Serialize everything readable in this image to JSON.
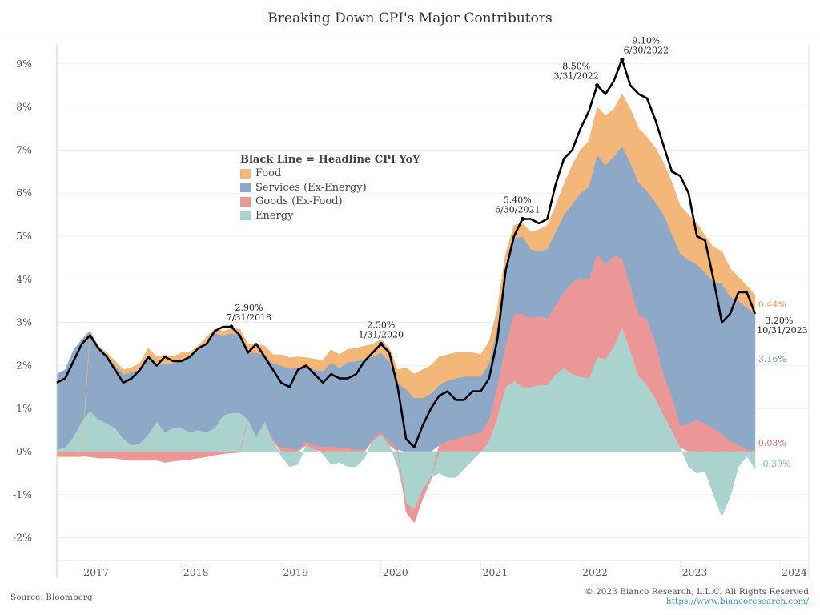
{
  "title": "Breaking Down CPI's Major Contributors",
  "source": "Source: Bloomberg",
  "copyright": "© 2023 Bianco Research, L.L.C. All Rights Reserved",
  "website": "https://www.biancoresearch.com/",
  "chart_data": {
    "type": "area",
    "stacked": true,
    "title": "Breaking Down CPI's Major Contributors",
    "xlabel": "",
    "ylabel": "",
    "ylim": [
      -2.5,
      9.5
    ],
    "yticks": [
      -2,
      -1,
      0,
      1,
      2,
      3,
      4,
      5,
      6,
      7,
      8,
      9
    ],
    "ytick_labels": [
      "-2%",
      "-1%",
      "0%",
      "1%",
      "2%",
      "3%",
      "4%",
      "5%",
      "6%",
      "7%",
      "8%",
      "9%"
    ],
    "xtick_labels": [
      "2017",
      "2018",
      "2019",
      "2020",
      "2021",
      "2022",
      "2023",
      "2024"
    ],
    "x_start": "2016-10",
    "x_end": "2023-10",
    "frequency": "monthly",
    "grid": true,
    "legend": {
      "placement": "upper-left-center",
      "title": "Black Line = Headline CPI YoY",
      "entries": [
        "Food",
        "Services (Ex-Energy)",
        "Goods (Ex-Food)",
        "Energy"
      ]
    },
    "colors": {
      "food": "#F3B77A",
      "services": "#8EA9C8",
      "goods": "#EB9697",
      "energy": "#ABD3CE",
      "headline": "#000000"
    },
    "headline": {
      "name": "Headline CPI YoY",
      "values": [
        1.6,
        1.7,
        2.1,
        2.5,
        2.7,
        2.4,
        2.2,
        1.9,
        1.6,
        1.7,
        1.9,
        2.2,
        2.0,
        2.2,
        2.1,
        2.1,
        2.2,
        2.4,
        2.5,
        2.8,
        2.9,
        2.9,
        2.7,
        2.3,
        2.5,
        2.2,
        1.9,
        1.6,
        1.5,
        1.9,
        2.0,
        1.8,
        1.6,
        1.8,
        1.7,
        1.7,
        1.8,
        2.1,
        2.3,
        2.5,
        2.3,
        1.5,
        0.3,
        0.1,
        0.6,
        1.0,
        1.3,
        1.4,
        1.2,
        1.2,
        1.4,
        1.4,
        1.7,
        2.6,
        4.2,
        5.0,
        5.4,
        5.4,
        5.3,
        5.4,
        6.2,
        6.8,
        7.0,
        7.5,
        7.9,
        8.5,
        8.3,
        8.6,
        9.1,
        8.5,
        8.3,
        8.2,
        7.7,
        7.1,
        6.5,
        6.4,
        6.0,
        5.0,
        4.9,
        4.0,
        3.0,
        3.2,
        3.7,
        3.7,
        3.2
      ]
    },
    "series": [
      {
        "name": "Energy",
        "key": "energy",
        "values": [
          0.05,
          0.1,
          0.35,
          0.7,
          0.95,
          0.75,
          0.65,
          0.55,
          0.3,
          0.15,
          0.2,
          0.4,
          0.7,
          0.45,
          0.55,
          0.55,
          0.45,
          0.5,
          0.45,
          0.55,
          0.85,
          0.9,
          0.9,
          0.75,
          0.35,
          0.7,
          0.25,
          -0.1,
          -0.35,
          -0.3,
          0.15,
          0.05,
          -0.05,
          -0.3,
          -0.25,
          -0.35,
          -0.35,
          -0.15,
          0.25,
          0.4,
          0.15,
          -0.35,
          -1.2,
          -1.35,
          -0.9,
          -0.6,
          -0.5,
          -0.6,
          -0.6,
          -0.4,
          -0.2,
          0.0,
          0.25,
          0.8,
          1.5,
          1.65,
          1.5,
          1.5,
          1.55,
          1.55,
          1.8,
          1.95,
          1.8,
          1.75,
          1.7,
          2.2,
          2.15,
          2.45,
          2.9,
          2.35,
          1.75,
          1.55,
          1.25,
          0.85,
          0.5,
          0.1,
          -0.35,
          -0.5,
          -0.45,
          -1.0,
          -1.5,
          -1.05,
          -0.35,
          -0.1,
          -0.39
        ]
      },
      {
        "name": "Goods (Ex-Food)",
        "key": "goods",
        "values": [
          -0.1,
          -0.1,
          -0.1,
          -0.1,
          -0.12,
          -0.15,
          -0.15,
          -0.15,
          -0.18,
          -0.2,
          -0.2,
          -0.2,
          -0.2,
          -0.25,
          -0.22,
          -0.2,
          -0.18,
          -0.15,
          -0.12,
          -0.08,
          -0.05,
          -0.03,
          -0.02,
          0.0,
          0.0,
          0.0,
          0.05,
          0.1,
          0.08,
          0.05,
          0.08,
          0.1,
          0.12,
          0.12,
          0.1,
          0.08,
          0.05,
          0.05,
          0.05,
          0.05,
          0.1,
          0.05,
          -0.2,
          -0.3,
          -0.2,
          -0.05,
          0.15,
          0.25,
          0.3,
          0.35,
          0.4,
          0.45,
          0.5,
          0.75,
          1.0,
          1.55,
          1.7,
          1.6,
          1.6,
          1.55,
          1.6,
          1.75,
          2.15,
          2.25,
          2.3,
          2.4,
          2.2,
          2.1,
          1.6,
          1.5,
          1.45,
          1.5,
          1.3,
          0.95,
          0.8,
          0.5,
          0.65,
          0.75,
          0.65,
          0.55,
          0.4,
          0.25,
          0.15,
          0.05,
          0.03
        ]
      },
      {
        "name": "Services (Ex-Energy)",
        "key": "services",
        "values": [
          1.75,
          1.8,
          2.0,
          1.9,
          1.85,
          1.7,
          1.6,
          1.45,
          1.5,
          1.7,
          1.7,
          1.8,
          1.3,
          1.6,
          1.5,
          1.6,
          1.75,
          1.85,
          2.1,
          2.2,
          1.85,
          1.85,
          1.8,
          1.55,
          1.95,
          1.55,
          1.75,
          1.9,
          1.85,
          1.9,
          1.75,
          1.75,
          1.75,
          1.95,
          1.85,
          2.0,
          2.05,
          2.1,
          1.9,
          1.85,
          1.85,
          1.55,
          1.45,
          1.25,
          1.25,
          1.35,
          1.4,
          1.4,
          1.4,
          1.4,
          1.35,
          1.3,
          1.3,
          1.35,
          1.8,
          1.75,
          1.8,
          1.6,
          1.5,
          1.6,
          1.7,
          1.8,
          1.8,
          2.0,
          2.15,
          2.3,
          2.3,
          2.3,
          2.6,
          2.85,
          3.05,
          3.0,
          3.25,
          3.7,
          3.75,
          4.0,
          3.8,
          3.6,
          3.5,
          3.4,
          3.5,
          3.35,
          3.35,
          3.3,
          3.16
        ]
      },
      {
        "name": "Food",
        "key": "food",
        "values": [
          -0.02,
          -0.02,
          -0.02,
          -0.02,
          0.0,
          0.0,
          0.05,
          0.1,
          0.1,
          0.1,
          0.15,
          0.2,
          0.2,
          0.2,
          0.15,
          0.15,
          0.1,
          0.1,
          0.1,
          0.1,
          0.1,
          0.1,
          0.15,
          0.2,
          0.2,
          0.2,
          0.2,
          0.25,
          0.25,
          0.25,
          0.2,
          0.25,
          0.25,
          0.3,
          0.3,
          0.3,
          0.3,
          0.3,
          0.3,
          0.3,
          0.3,
          0.3,
          0.5,
          0.55,
          0.65,
          0.65,
          0.65,
          0.6,
          0.6,
          0.55,
          0.55,
          0.5,
          0.5,
          0.4,
          0.3,
          0.3,
          0.3,
          0.4,
          0.5,
          0.55,
          0.6,
          0.7,
          0.9,
          1.0,
          1.05,
          1.1,
          1.15,
          1.1,
          1.2,
          1.25,
          1.25,
          1.25,
          1.25,
          1.2,
          1.2,
          1.1,
          1.05,
          0.95,
          0.85,
          0.8,
          0.75,
          0.65,
          0.55,
          0.5,
          0.44
        ]
      }
    ],
    "annotations": [
      {
        "index": 21,
        "value_label": "2.90%",
        "date_label": "7/31/2018"
      },
      {
        "index": 39,
        "value_label": "2.50%",
        "date_label": "1/31/2020"
      },
      {
        "index": 56,
        "value_label": "5.40%",
        "date_label": "6/30/2021"
      },
      {
        "index": 65,
        "value_label": "8.50%",
        "date_label": "3/31/2022"
      },
      {
        "index": 68,
        "value_label": "9.10%",
        "date_label": "6/30/2022"
      }
    ],
    "end_labels": {
      "headline_value": "3.20%",
      "headline_date": "10/31/2023",
      "food": "0.44%",
      "services": "3.16%",
      "goods": "0.03%",
      "energy": "-0.39%"
    }
  }
}
